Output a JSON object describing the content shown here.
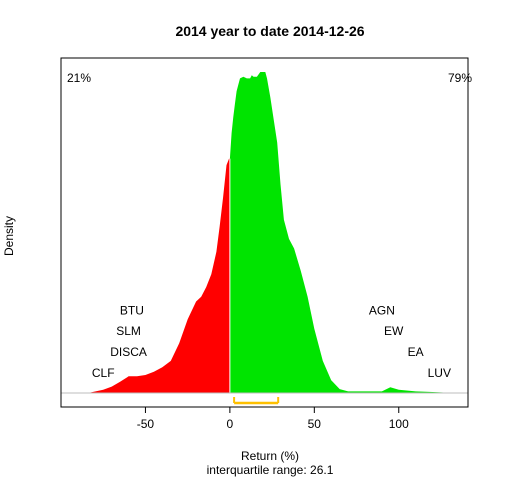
{
  "chart_data": {
    "type": "area",
    "title": "2014  year to date 2014-12-26",
    "xlabel": "Return (%)",
    "ylabel": "Density",
    "subtitle": "interquartile range: 26.1",
    "xlim": [
      -100,
      141
    ],
    "ylim": [
      0,
      1
    ],
    "x_ticks": [
      -50,
      0,
      50,
      100
    ],
    "x_tick_labels": [
      "-50",
      "0",
      "50",
      "100"
    ],
    "split_at": 0,
    "negative_share_label": "21%",
    "positive_share_label": "79%",
    "negative_color": "#ff0000",
    "positive_color": "#00e400",
    "iqr_color": "#ffc000",
    "iqr": [
      2.5,
      28.6
    ],
    "density": {
      "x": [
        -84,
        -75,
        -70,
        -65,
        -60,
        -55,
        -50,
        -45,
        -40,
        -35,
        -30,
        -25,
        -20,
        -17,
        -14,
        -11,
        -8,
        -6,
        -4,
        -2,
        -0.5,
        0,
        1,
        2,
        3,
        4,
        5,
        6,
        8,
        10,
        12,
        13,
        14,
        16,
        18,
        20,
        21,
        22,
        24,
        26,
        28,
        30,
        32,
        35,
        38,
        42,
        46,
        50,
        55,
        60,
        65,
        70,
        80,
        90,
        95,
        100,
        110,
        120,
        125,
        132
      ],
      "y": [
        0.0,
        0.01,
        0.02,
        0.035,
        0.052,
        0.052,
        0.056,
        0.066,
        0.08,
        0.1,
        0.155,
        0.23,
        0.285,
        0.3,
        0.33,
        0.37,
        0.44,
        0.52,
        0.61,
        0.71,
        0.73,
        0.73,
        0.81,
        0.86,
        0.9,
        0.94,
        0.96,
        0.98,
        0.985,
        0.98,
        0.98,
        0.99,
        0.985,
        0.985,
        1.0,
        1.0,
        1.0,
        0.98,
        0.92,
        0.85,
        0.78,
        0.65,
        0.54,
        0.48,
        0.45,
        0.38,
        0.3,
        0.2,
        0.1,
        0.04,
        0.012,
        0.005,
        0.005,
        0.005,
        0.018,
        0.01,
        0.005,
        0.003,
        0.002,
        0.0
      ]
    },
    "annotations_left": [
      {
        "text": "BTU",
        "x": -58,
        "y": 0.245
      },
      {
        "text": "SLM",
        "x": -60,
        "y": 0.18
      },
      {
        "text": "DISCA",
        "x": -60,
        "y": 0.115
      },
      {
        "text": "CLF",
        "x": -75,
        "y": 0.05
      }
    ],
    "annotations_right": [
      {
        "text": "AGN",
        "x": 90,
        "y": 0.245
      },
      {
        "text": "EW",
        "x": 97,
        "y": 0.18
      },
      {
        "text": "EA",
        "x": 110,
        "y": 0.115
      },
      {
        "text": "LUV",
        "x": 124,
        "y": 0.05
      }
    ]
  }
}
